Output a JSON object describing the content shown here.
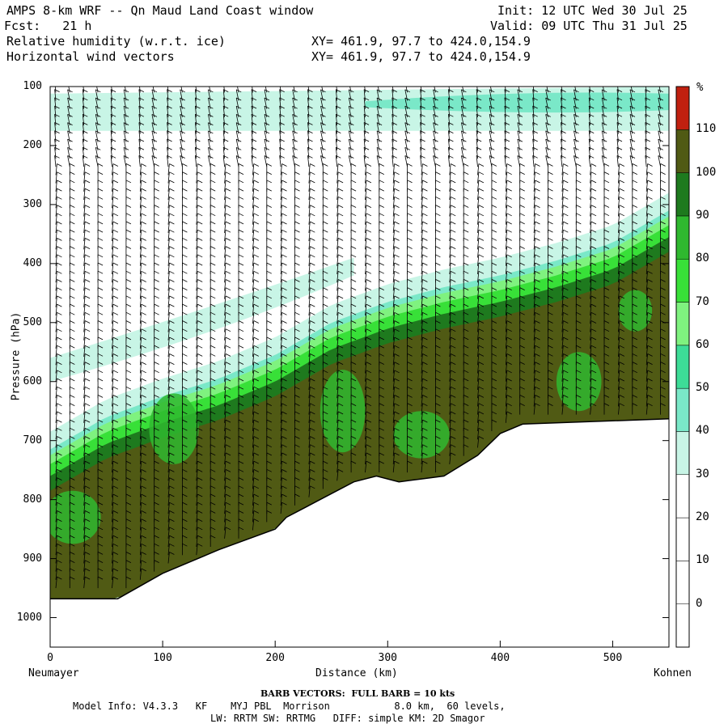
{
  "header": {
    "title": "AMPS 8-km WRF -- Qn Maud Land Coast window",
    "init": "Init: 12 UTC Wed 30 Jul 25",
    "fcst": "Fcst:   21 h",
    "valid": "Valid: 09 UTC Thu 31 Jul 25",
    "field1": "Relative humidity (w.r.t. ice)",
    "field1_xy": "XY= 461.9, 97.7 to 424.0,154.9",
    "field2": "Horizontal wind vectors",
    "field2_xy": "XY= 461.9, 97.7 to 424.0,154.9"
  },
  "footer": {
    "barb": "BARB VECTORS:  FULL BARB = 10 kts",
    "model1": "Model Info: V4.3.3   KF    MYJ PBL  Morrison           8.0 km,  60 levels,",
    "model2": "LW: RRTM SW: RRTMG   DIFF: simple KM: 2D Smagor"
  },
  "chart_data": {
    "type": "heatmap",
    "title": "Relative humidity (w.r.t. ice)",
    "xlabel": "Distance (km)",
    "ylabel": "Pressure (hPa)",
    "x_left_label": "Neumayer",
    "x_right_label": "Kohnen",
    "xlim": [
      0,
      550
    ],
    "ylim": [
      100,
      1050
    ],
    "y_inverted": true,
    "x_ticks": [
      0,
      100,
      200,
      300,
      400,
      500
    ],
    "y_ticks": [
      100,
      200,
      300,
      400,
      500,
      600,
      700,
      800,
      900,
      1000
    ],
    "colorbar_unit": "%",
    "colorbar_levels": [
      0,
      10,
      20,
      30,
      40,
      50,
      60,
      70,
      80,
      90,
      100,
      110
    ],
    "colorbar_colors": [
      "#ffffff",
      "#ffffff",
      "#ffffff",
      "#ffffff",
      "#c8f5e6",
      "#7ae8c8",
      "#3ddc97",
      "#7ff27f",
      "#38e038",
      "#2fb82f",
      "#1e7a1e",
      "#505a14",
      "#c02010"
    ],
    "terrain_surface_hpa": {
      "x": [
        0,
        60,
        100,
        150,
        200,
        210,
        240,
        270,
        290,
        310,
        330,
        350,
        380,
        400,
        420,
        550
      ],
      "p": [
        968,
        968,
        925,
        885,
        850,
        830,
        800,
        770,
        760,
        770,
        765,
        760,
        725,
        688,
        672,
        663
      ]
    },
    "moist_layer_top_hpa": {
      "x": [
        0,
        50,
        100,
        150,
        200,
        250,
        300,
        350,
        400,
        450,
        500,
        550
      ],
      "p": [
        705,
        650,
        615,
        585,
        545,
        490,
        455,
        430,
        410,
        385,
        355,
        300
      ]
    },
    "upper_moist_band_hpa": {
      "x": [
        0,
        550
      ],
      "top": [
        112,
        100
      ],
      "bottom": [
        175,
        175
      ]
    },
    "wind_barbs": "Horizontal wind vectors at each column",
    "barb_unit": "FULL BARB = 10 kts"
  }
}
